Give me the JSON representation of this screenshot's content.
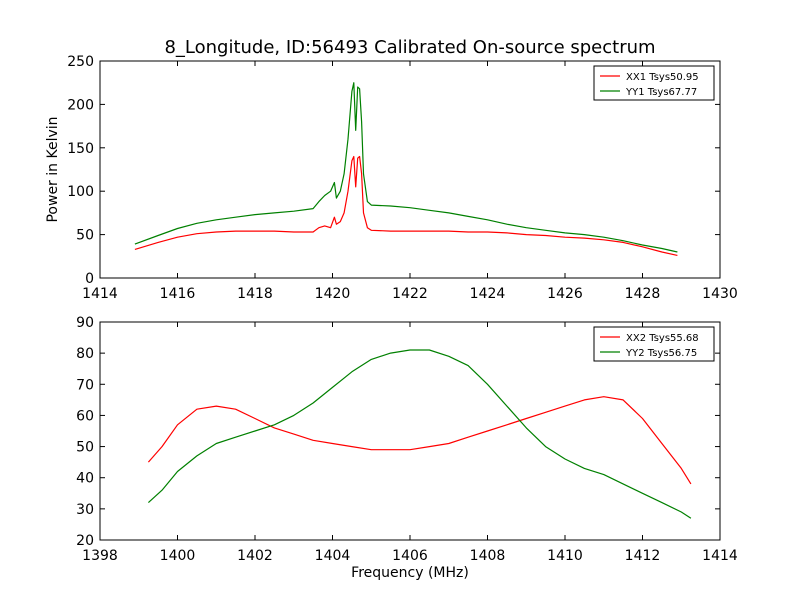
{
  "title": "8_Longitude, ID:56493 Calibrated On-source spectrum",
  "chart_data": [
    {
      "type": "line",
      "title": "8_Longitude, ID:56493 Calibrated On-source spectrum",
      "xlabel": "",
      "ylabel": "Power in Kelvin",
      "xlim": [
        1414,
        1430
      ],
      "ylim": [
        0,
        250
      ],
      "xticks": [
        1414,
        1416,
        1418,
        1420,
        1422,
        1424,
        1426,
        1428,
        1430
      ],
      "yticks": [
        0,
        50,
        100,
        150,
        200,
        250
      ],
      "grid": false,
      "legend_position": "top-right",
      "series": [
        {
          "name": "XX1 Tsys50.95",
          "color": "#ff0000",
          "x": [
            1414.9,
            1415.5,
            1416,
            1416.5,
            1417,
            1417.5,
            1418,
            1418.5,
            1419,
            1419.5,
            1419.65,
            1419.8,
            1419.95,
            1420.05,
            1420.1,
            1420.2,
            1420.3,
            1420.4,
            1420.5,
            1420.55,
            1420.6,
            1420.65,
            1420.7,
            1420.75,
            1420.8,
            1420.9,
            1421.0,
            1421.5,
            1422,
            1422.5,
            1423,
            1423.5,
            1424,
            1424.5,
            1425,
            1425.5,
            1426,
            1426.5,
            1427,
            1427.5,
            1428,
            1428.5,
            1428.9
          ],
          "values": [
            33,
            41,
            47,
            51,
            53,
            54,
            54,
            54,
            53,
            53,
            58,
            60,
            58,
            70,
            62,
            65,
            75,
            100,
            135,
            140,
            105,
            138,
            140,
            120,
            75,
            58,
            55,
            54,
            54,
            54,
            54,
            53,
            53,
            52,
            50,
            49,
            47,
            46,
            44,
            41,
            36,
            30,
            26
          ]
        },
        {
          "name": "YY1 Tsys67.77",
          "color": "#008000",
          "x": [
            1414.9,
            1415.5,
            1416,
            1416.5,
            1417,
            1417.5,
            1418,
            1418.5,
            1419,
            1419.5,
            1419.65,
            1419.8,
            1419.95,
            1420.05,
            1420.1,
            1420.2,
            1420.3,
            1420.4,
            1420.5,
            1420.55,
            1420.6,
            1420.65,
            1420.7,
            1420.75,
            1420.8,
            1420.9,
            1421.0,
            1421.5,
            1422,
            1422.5,
            1423,
            1423.5,
            1424,
            1424.5,
            1425,
            1425.5,
            1426,
            1426.5,
            1427,
            1427.5,
            1428,
            1428.5,
            1428.9
          ],
          "values": [
            39,
            49,
            57,
            63,
            67,
            70,
            73,
            75,
            77,
            80,
            88,
            95,
            100,
            110,
            92,
            100,
            120,
            160,
            215,
            225,
            170,
            220,
            218,
            180,
            120,
            88,
            84,
            83,
            81,
            78,
            75,
            71,
            67,
            62,
            58,
            55,
            52,
            50,
            47,
            43,
            38,
            34,
            30
          ]
        }
      ]
    },
    {
      "type": "line",
      "title": "",
      "xlabel": "Frequency (MHz)",
      "ylabel": "",
      "xlim": [
        1398,
        1414
      ],
      "ylim": [
        20,
        90
      ],
      "xticks": [
        1398,
        1400,
        1402,
        1404,
        1406,
        1408,
        1410,
        1412,
        1414
      ],
      "yticks": [
        20,
        30,
        40,
        50,
        60,
        70,
        80,
        90
      ],
      "grid": false,
      "legend_position": "top-right",
      "series": [
        {
          "name": "XX2 Tsys55.68",
          "color": "#ff0000",
          "x": [
            1399.25,
            1399.6,
            1400,
            1400.5,
            1401,
            1401.5,
            1402,
            1402.5,
            1403,
            1403.5,
            1404,
            1404.5,
            1405,
            1405.5,
            1406,
            1406.5,
            1407,
            1407.5,
            1408,
            1408.5,
            1409,
            1409.5,
            1410,
            1410.5,
            1411,
            1411.5,
            1412,
            1412.5,
            1413,
            1413.25
          ],
          "values": [
            45,
            50,
            57,
            62,
            63,
            62,
            59,
            56,
            54,
            52,
            51,
            50,
            49,
            49,
            49,
            50,
            51,
            53,
            55,
            57,
            59,
            61,
            63,
            65,
            66,
            65,
            59,
            51,
            43,
            38
          ]
        },
        {
          "name": "YY2 Tsys56.75",
          "color": "#008000",
          "x": [
            1399.25,
            1399.6,
            1400,
            1400.5,
            1401,
            1401.5,
            1402,
            1402.5,
            1403,
            1403.5,
            1404,
            1404.5,
            1405,
            1405.5,
            1406,
            1406.5,
            1407,
            1407.5,
            1408,
            1408.5,
            1409,
            1409.5,
            1410,
            1410.5,
            1411,
            1411.5,
            1412,
            1412.5,
            1413,
            1413.25
          ],
          "values": [
            32,
            36,
            42,
            47,
            51,
            53,
            55,
            57,
            60,
            64,
            69,
            74,
            78,
            80,
            81,
            81,
            79,
            76,
            70,
            63,
            56,
            50,
            46,
            43,
            41,
            38,
            35,
            32,
            29,
            27
          ]
        }
      ]
    }
  ]
}
